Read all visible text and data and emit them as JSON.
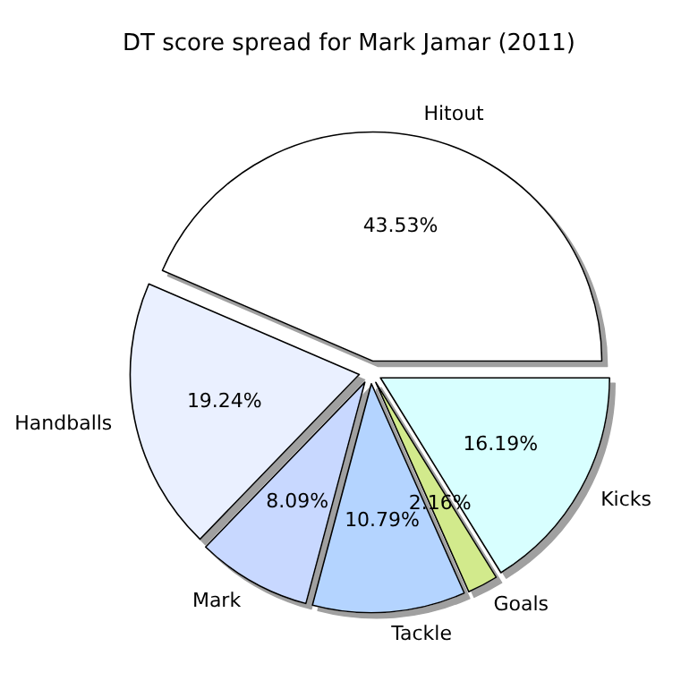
{
  "chart_data": {
    "type": "pie",
    "title": "DT score spread for Mark Jamar (2011)",
    "categories": [
      "Hitout",
      "Handballs",
      "Mark",
      "Tackle",
      "Goals",
      "Kicks"
    ],
    "values": [
      43.53,
      19.24,
      8.09,
      10.79,
      2.16,
      16.19
    ],
    "colors": [
      "#ffffff",
      "#eaf0ff",
      "#c8d8ff",
      "#b4d4ff",
      "#d2ea8c",
      "#d8ffff"
    ],
    "value_labels": [
      "43.53%",
      "19.24%",
      "8.09%",
      "10.79%",
      "2.16%",
      "16.19%"
    ]
  }
}
